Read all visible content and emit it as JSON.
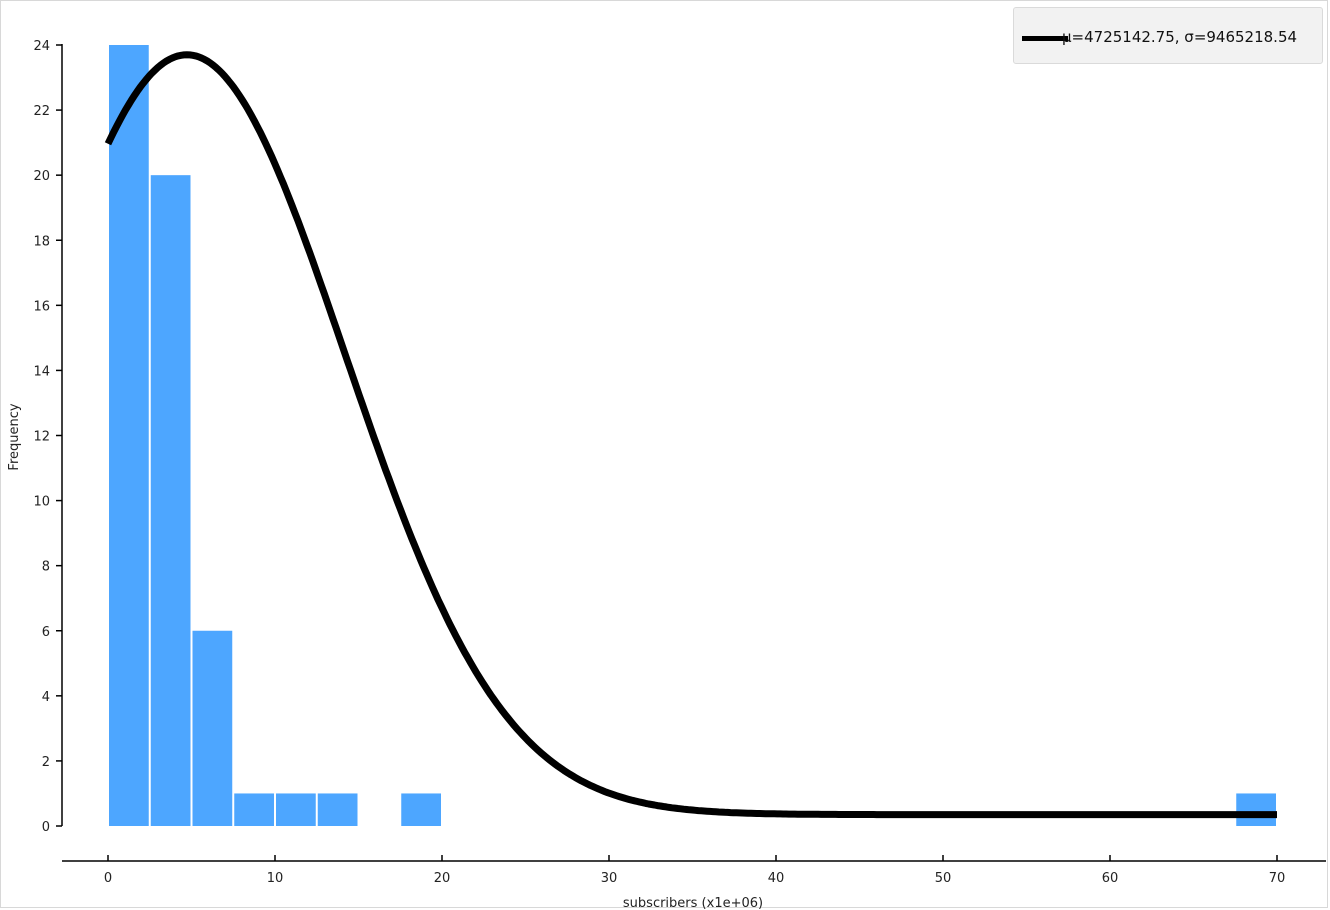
{
  "chart_data": {
    "type": "bar",
    "xlabel": "subscribers (x1e+06)",
    "ylabel": "Frequency",
    "xlim": [
      -2.6,
      72.5
    ],
    "ylim": [
      0,
      24
    ],
    "x_ticks": [
      0,
      10,
      20,
      30,
      40,
      50,
      60,
      70
    ],
    "y_ticks": [
      0,
      2,
      4,
      6,
      8,
      10,
      12,
      14,
      16,
      18,
      20,
      22,
      24
    ],
    "bar_color": "#4da6ff",
    "bins": [
      {
        "x0": 0.0,
        "x1": 2.5,
        "count": 24
      },
      {
        "x0": 2.5,
        "x1": 5.0,
        "count": 20
      },
      {
        "x0": 5.0,
        "x1": 7.5,
        "count": 6
      },
      {
        "x0": 7.5,
        "x1": 10.0,
        "count": 1
      },
      {
        "x0": 10.0,
        "x1": 12.5,
        "count": 1
      },
      {
        "x0": 12.5,
        "x1": 15.0,
        "count": 1
      },
      {
        "x0": 17.5,
        "x1": 20.0,
        "count": 1
      },
      {
        "x0": 67.5,
        "x1": 70.0,
        "count": 1
      }
    ],
    "series": [
      {
        "name": "μ=4725142.75, σ=9465218.54",
        "type": "normal-fit",
        "mean": 4.72514275,
        "std": 9.46521854,
        "line_color": "#000000"
      }
    ],
    "legend_position": "top-right",
    "grid": false
  }
}
